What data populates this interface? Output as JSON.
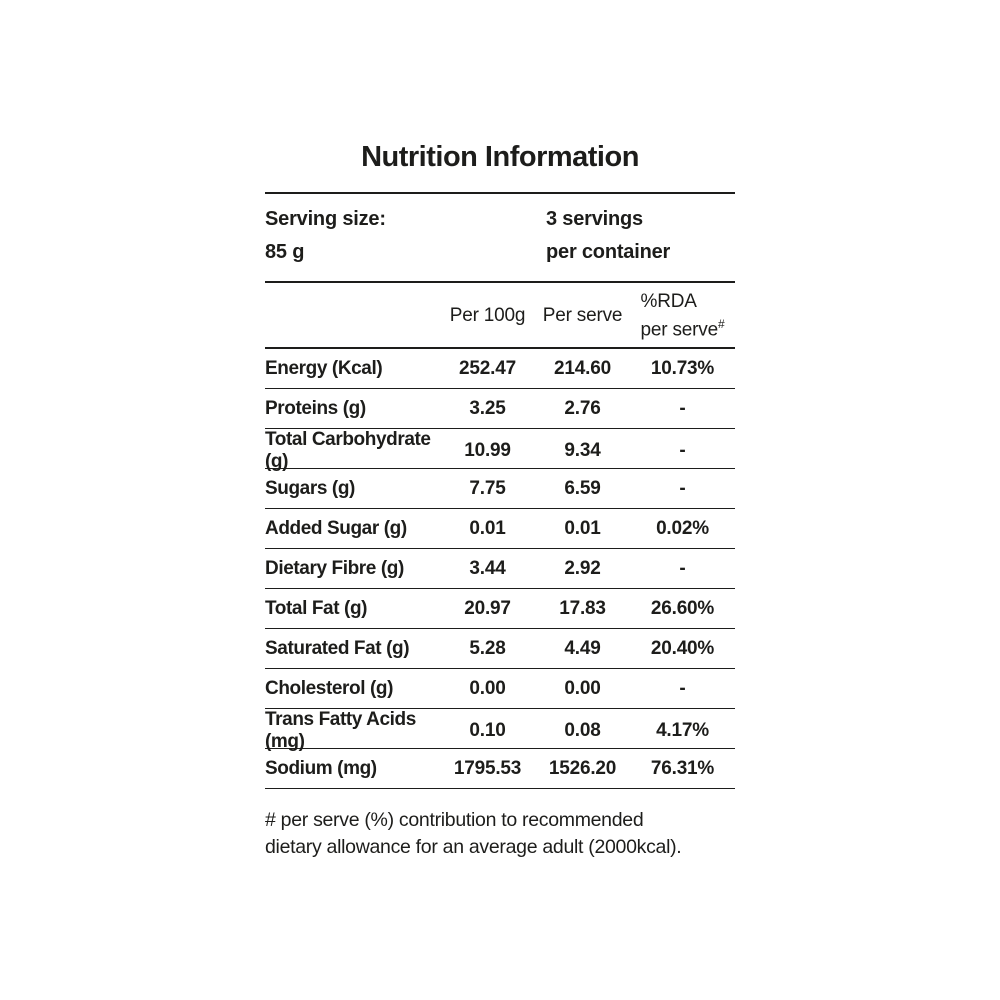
{
  "label": {
    "title": "Nutrition Information",
    "serving": {
      "size_label": "Serving size:",
      "size_value": "85 g",
      "servings_line1": "3 servings",
      "servings_line2": "per container"
    },
    "columns": {
      "per_100g": "Per 100g",
      "per_serve": "Per serve",
      "rda_line1": "%RDA",
      "rda_line2": "per serve",
      "rda_sup": "#"
    },
    "rows": [
      {
        "label": "Energy (Kcal)",
        "per_100g": "252.47",
        "per_serve": "214.60",
        "rda": "10.73%"
      },
      {
        "label": "Proteins (g)",
        "per_100g": "3.25",
        "per_serve": "2.76",
        "rda": "-"
      },
      {
        "label": "Total Carbohydrate (g)",
        "per_100g": "10.99",
        "per_serve": "9.34",
        "rda": "-"
      },
      {
        "label": "Sugars (g)",
        "per_100g": "7.75",
        "per_serve": "6.59",
        "rda": "-"
      },
      {
        "label": "Added Sugar (g)",
        "per_100g": "0.01",
        "per_serve": "0.01",
        "rda": "0.02%"
      },
      {
        "label": "Dietary Fibre (g)",
        "per_100g": "3.44",
        "per_serve": "2.92",
        "rda": "-"
      },
      {
        "label": "Total Fat (g)",
        "per_100g": "20.97",
        "per_serve": "17.83",
        "rda": "26.60%"
      },
      {
        "label": "Saturated Fat (g)",
        "per_100g": "5.28",
        "per_serve": "4.49",
        "rda": "20.40%"
      },
      {
        "label": "Cholesterol (g)",
        "per_100g": "0.00",
        "per_serve": "0.00",
        "rda": "-"
      },
      {
        "label": "Trans Fatty Acids (mg)",
        "per_100g": "0.10",
        "per_serve": "0.08",
        "rda": "4.17%"
      },
      {
        "label": "Sodium (mg)",
        "per_100g": "1795.53",
        "per_serve": "1526.20",
        "rda": "76.31%"
      }
    ],
    "footnote_line1": "# per serve (%) contribution to recommended",
    "footnote_line2": "dietary allowance for an average adult (2000kcal).",
    "colors": {
      "text": "#1d1d1b",
      "rule": "#1d1d1b",
      "background": "#ffffff"
    }
  }
}
